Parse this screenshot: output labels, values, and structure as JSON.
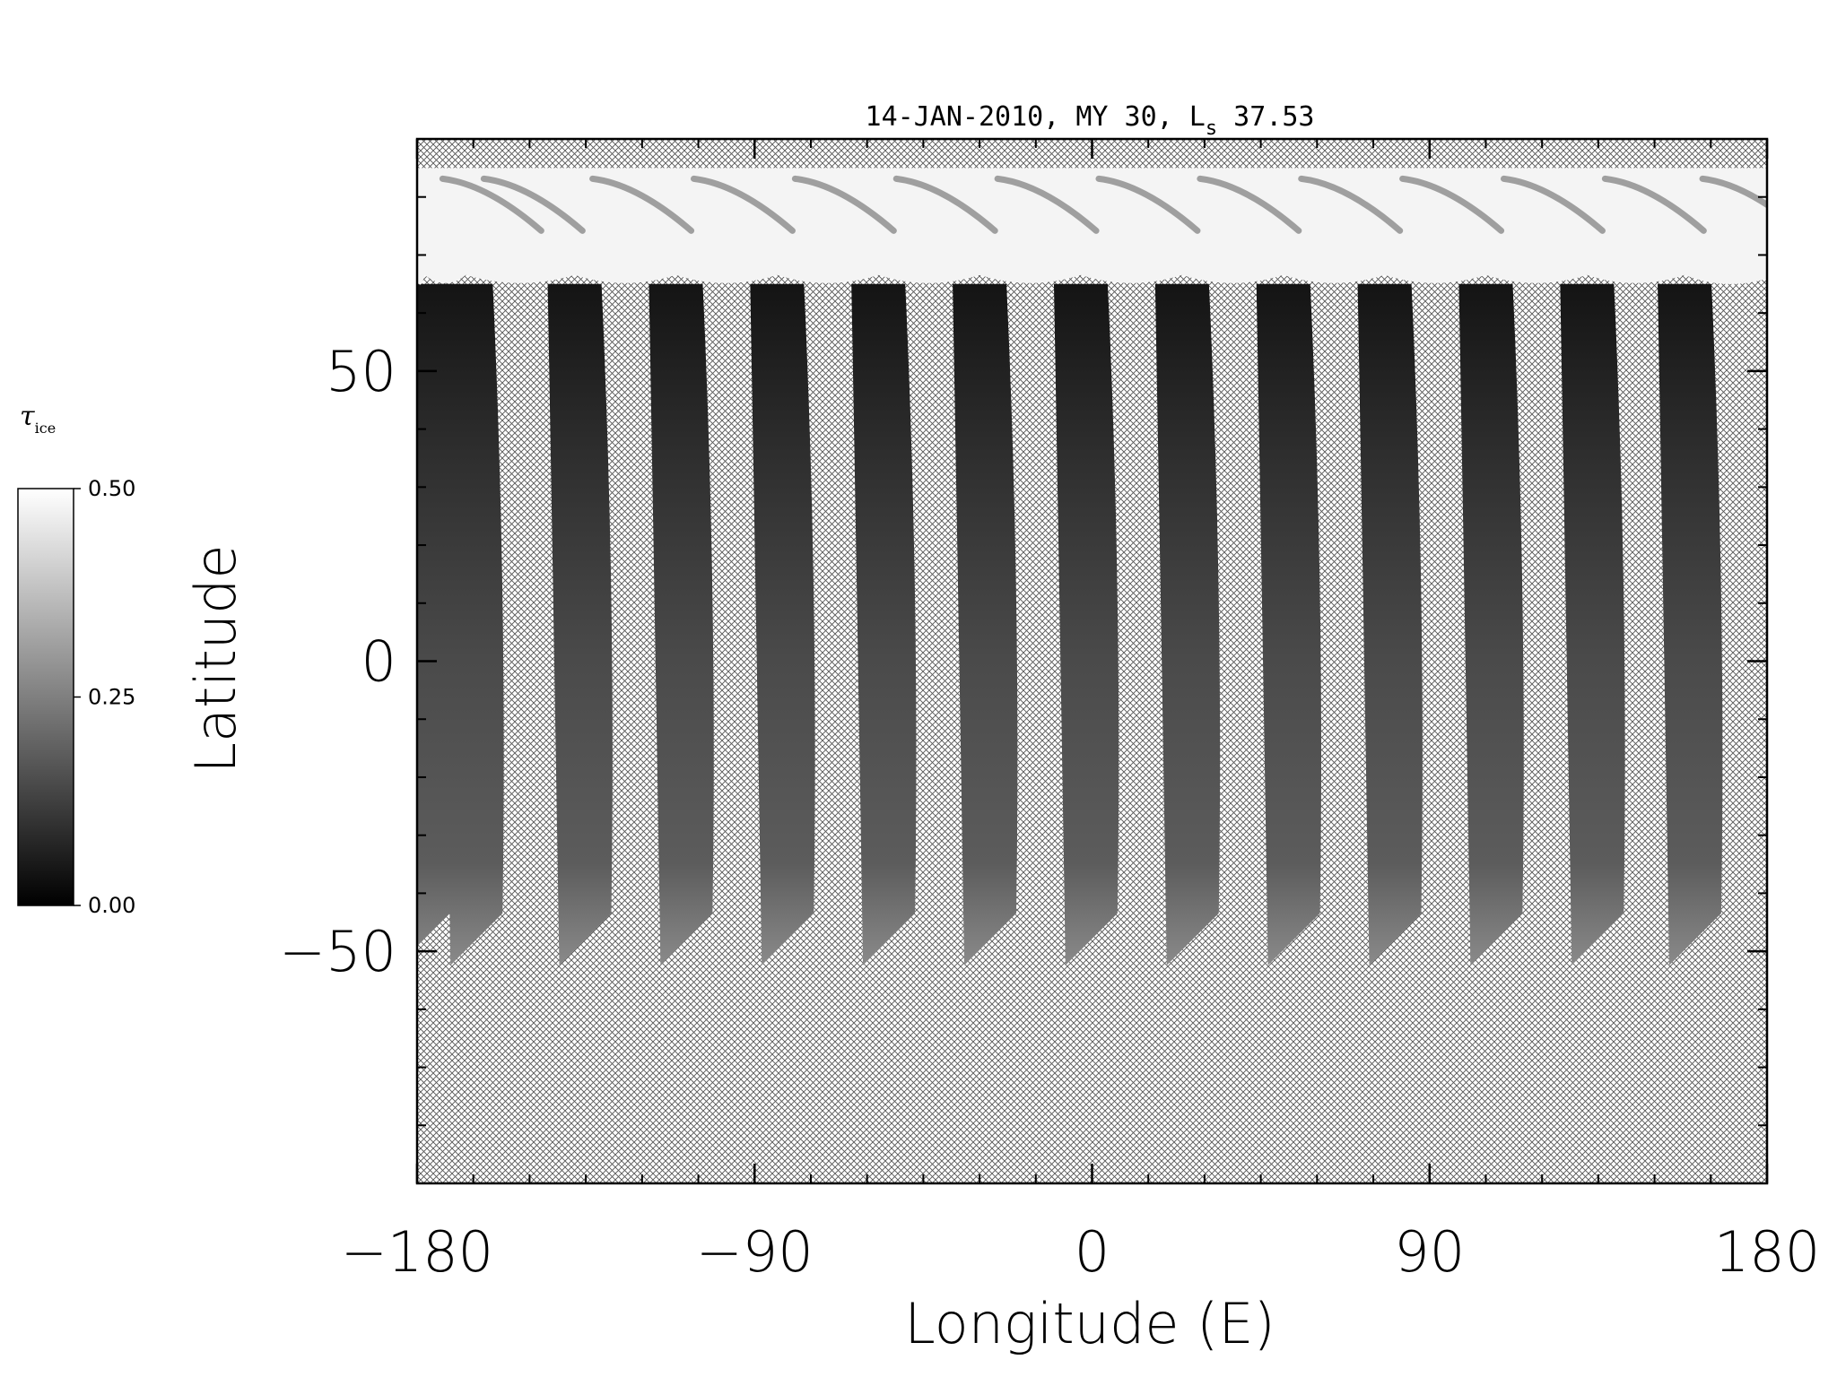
{
  "chart_data": {
    "type": "heatmap",
    "title_prefix": "14-JAN-2010, MY 30,  L",
    "title_subscript": "s",
    "title_suffix": " 37.53",
    "xlabel": "Longitude (E)",
    "ylabel": "Latitude",
    "xlim": [
      -180,
      180
    ],
    "ylim": [
      -90,
      90
    ],
    "x_ticks": [
      -180,
      -90,
      0,
      90,
      180
    ],
    "x_tick_labels": [
      "−180",
      "−90",
      "0",
      "90",
      "180"
    ],
    "y_ticks": [
      -50,
      0,
      50
    ],
    "y_tick_labels": [
      "−50",
      "0",
      "50"
    ],
    "no_data_fill": "crosshatch",
    "north_cap": {
      "lat_min": 65,
      "lat_max": 85,
      "value": 0.5
    },
    "swaths": [
      {
        "lon_south": -176,
        "lon_north": -178,
        "lat_south": -45,
        "lat_north": 65
      },
      {
        "lon_south": -162,
        "lon_north": -167,
        "lat_south": -45,
        "lat_north": 65
      },
      {
        "lon_south": -133,
        "lon_north": -138,
        "lat_south": -45,
        "lat_north": 65
      },
      {
        "lon_south": -106,
        "lon_north": -111,
        "lat_south": -45,
        "lat_north": 65
      },
      {
        "lon_south": -79,
        "lon_north": -84,
        "lat_south": -45,
        "lat_north": 65
      },
      {
        "lon_south": -52,
        "lon_north": -57,
        "lat_south": -45,
        "lat_north": 65
      },
      {
        "lon_south": -25,
        "lon_north": -30,
        "lat_south": -45,
        "lat_north": 65
      },
      {
        "lon_south": 2,
        "lon_north": -3,
        "lat_south": -45,
        "lat_north": 65
      },
      {
        "lon_south": 29,
        "lon_north": 24,
        "lat_south": -45,
        "lat_north": 65
      },
      {
        "lon_south": 56,
        "lon_north": 51,
        "lat_south": -45,
        "lat_north": 65
      },
      {
        "lon_south": 83,
        "lon_north": 78,
        "lat_south": -45,
        "lat_north": 65
      },
      {
        "lon_south": 110,
        "lon_north": 105,
        "lat_south": -45,
        "lat_north": 65
      },
      {
        "lon_south": 137,
        "lon_north": 132,
        "lat_south": -45,
        "lat_north": 65
      },
      {
        "lon_south": 163,
        "lon_north": 158,
        "lat_south": -45,
        "lat_north": 65
      }
    ],
    "colorbar": {
      "label_symbol": "τ",
      "label_subscript": "ice",
      "min": 0.0,
      "max": 0.5,
      "tick_values": [
        0.0,
        0.25,
        0.5
      ],
      "tick_labels": [
        "0.00",
        "0.25",
        "0.50"
      ],
      "colormap": "grayscale",
      "color_low": "#000000",
      "color_high": "#ffffff"
    }
  }
}
